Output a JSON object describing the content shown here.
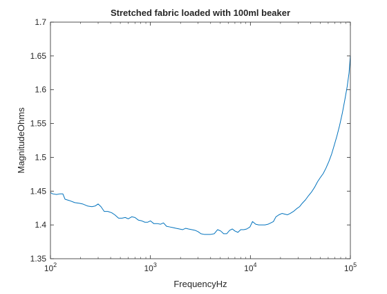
{
  "chart_data": {
    "type": "line",
    "title": "Stretched fabric loaded with 100ml beaker",
    "xlabel": "FrequencyHz",
    "ylabel": "MagnitudeOhms",
    "xscale": "log",
    "xlim": [
      100,
      100000
    ],
    "ylim": [
      1.35,
      1.7
    ],
    "grid": false,
    "box": true,
    "line_color": "#0072BD",
    "x_ticks": [
      {
        "value": 100,
        "base": "10",
        "exp": "2"
      },
      {
        "value": 1000,
        "base": "10",
        "exp": "3"
      },
      {
        "value": 10000,
        "base": "10",
        "exp": "4"
      },
      {
        "value": 100000,
        "base": "10",
        "exp": "5"
      }
    ],
    "y_ticks": [
      {
        "value": 1.35,
        "label": "1.35"
      },
      {
        "value": 1.4,
        "label": "1.4"
      },
      {
        "value": 1.45,
        "label": "1.45"
      },
      {
        "value": 1.5,
        "label": "1.5"
      },
      {
        "value": 1.55,
        "label": "1.55"
      },
      {
        "value": 1.6,
        "label": "1.6"
      },
      {
        "value": 1.65,
        "label": "1.65"
      },
      {
        "value": 1.7,
        "label": "1.7"
      }
    ],
    "series": [
      {
        "points": [
          [
            100,
            1.448
          ],
          [
            105,
            1.446
          ],
          [
            115,
            1.445
          ],
          [
            125,
            1.446
          ],
          [
            133,
            1.446
          ],
          [
            140,
            1.438
          ],
          [
            155,
            1.436
          ],
          [
            175,
            1.433
          ],
          [
            195,
            1.432
          ],
          [
            210,
            1.431
          ],
          [
            235,
            1.428
          ],
          [
            260,
            1.427
          ],
          [
            280,
            1.428
          ],
          [
            300,
            1.431
          ],
          [
            320,
            1.427
          ],
          [
            345,
            1.42
          ],
          [
            375,
            1.42
          ],
          [
            410,
            1.418
          ],
          [
            440,
            1.415
          ],
          [
            480,
            1.41
          ],
          [
            520,
            1.41
          ],
          [
            560,
            1.411
          ],
          [
            600,
            1.409
          ],
          [
            650,
            1.412
          ],
          [
            700,
            1.411
          ],
          [
            760,
            1.407
          ],
          [
            820,
            1.406
          ],
          [
            880,
            1.404
          ],
          [
            940,
            1.404
          ],
          [
            1000,
            1.406
          ],
          [
            1080,
            1.402
          ],
          [
            1170,
            1.402
          ],
          [
            1260,
            1.401
          ],
          [
            1350,
            1.403
          ],
          [
            1450,
            1.398
          ],
          [
            1560,
            1.397
          ],
          [
            1680,
            1.396
          ],
          [
            1800,
            1.395
          ],
          [
            1950,
            1.394
          ],
          [
            2100,
            1.393
          ],
          [
            2250,
            1.395
          ],
          [
            2400,
            1.394
          ],
          [
            2600,
            1.393
          ],
          [
            2800,
            1.392
          ],
          [
            3000,
            1.39
          ],
          [
            3200,
            1.387
          ],
          [
            3450,
            1.386
          ],
          [
            3700,
            1.386
          ],
          [
            4000,
            1.386
          ],
          [
            4350,
            1.387
          ],
          [
            4700,
            1.393
          ],
          [
            5050,
            1.391
          ],
          [
            5400,
            1.387
          ],
          [
            5800,
            1.387
          ],
          [
            6200,
            1.392
          ],
          [
            6600,
            1.394
          ],
          [
            7000,
            1.391
          ],
          [
            7500,
            1.389
          ],
          [
            8000,
            1.393
          ],
          [
            8600,
            1.393
          ],
          [
            9200,
            1.394
          ],
          [
            9900,
            1.397
          ],
          [
            10500,
            1.405
          ],
          [
            11300,
            1.401
          ],
          [
            12100,
            1.4
          ],
          [
            13000,
            1.4
          ],
          [
            14000,
            1.4
          ],
          [
            15000,
            1.401
          ],
          [
            16000,
            1.403
          ],
          [
            17000,
            1.405
          ],
          [
            18000,
            1.412
          ],
          [
            19300,
            1.415
          ],
          [
            20700,
            1.417
          ],
          [
            22000,
            1.416
          ],
          [
            23500,
            1.415
          ],
          [
            25000,
            1.417
          ],
          [
            27000,
            1.42
          ],
          [
            29000,
            1.424
          ],
          [
            31000,
            1.427
          ],
          [
            33000,
            1.432
          ],
          [
            35500,
            1.437
          ],
          [
            38000,
            1.443
          ],
          [
            41000,
            1.449
          ],
          [
            44000,
            1.456
          ],
          [
            47000,
            1.464
          ],
          [
            50000,
            1.47
          ],
          [
            53500,
            1.476
          ],
          [
            57000,
            1.484
          ],
          [
            61000,
            1.494
          ],
          [
            65000,
            1.505
          ],
          [
            69000,
            1.518
          ],
          [
            73500,
            1.532
          ],
          [
            78000,
            1.547
          ],
          [
            83000,
            1.565
          ],
          [
            88000,
            1.585
          ],
          [
            93000,
            1.605
          ],
          [
            97000,
            1.625
          ],
          [
            100000,
            1.65
          ]
        ]
      }
    ]
  }
}
